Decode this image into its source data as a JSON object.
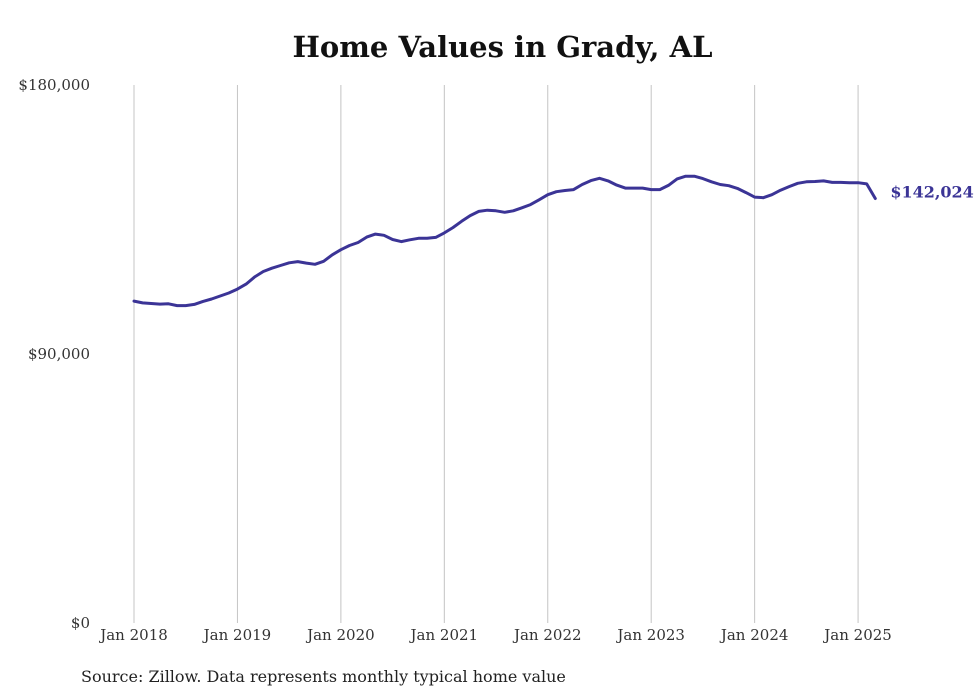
{
  "chart_data": {
    "type": "line",
    "title": "Home Values in Grady, AL",
    "source": "Source: Zillow. Data represents monthly typical home value",
    "xlabel": "",
    "ylabel": "",
    "ylim": [
      0,
      180000
    ],
    "y_ticks": [
      {
        "value": 180000,
        "label": "$180,000"
      },
      {
        "value": 90000,
        "label": "$90,000"
      },
      {
        "value": 0,
        "label": "$0"
      }
    ],
    "x_ticks": [
      {
        "value": "2018-01",
        "label": "Jan 2018"
      },
      {
        "value": "2019-01",
        "label": "Jan 2019"
      },
      {
        "value": "2020-01",
        "label": "Jan 2020"
      },
      {
        "value": "2021-01",
        "label": "Jan 2021"
      },
      {
        "value": "2022-01",
        "label": "Jan 2022"
      },
      {
        "value": "2023-01",
        "label": "Jan 2023"
      },
      {
        "value": "2024-01",
        "label": "Jan 2024"
      },
      {
        "value": "2025-01",
        "label": "Jan 2025"
      }
    ],
    "grid": {
      "vertical": true,
      "horizontal": false
    },
    "line_color": "#3b3496",
    "end_label": "$142,024",
    "series": [
      {
        "x": [
          "2018-01",
          "2018-02",
          "2018-03",
          "2018-04",
          "2018-05",
          "2018-06",
          "2018-07",
          "2018-08",
          "2018-09",
          "2018-10",
          "2018-11",
          "2018-12",
          "2019-01",
          "2019-02",
          "2019-03",
          "2019-04",
          "2019-05",
          "2019-06",
          "2019-07",
          "2019-08",
          "2019-09",
          "2019-10",
          "2019-11",
          "2019-12",
          "2020-01",
          "2020-02",
          "2020-03",
          "2020-04",
          "2020-05",
          "2020-06",
          "2020-07",
          "2020-08",
          "2020-09",
          "2020-10",
          "2020-11",
          "2020-12",
          "2021-01",
          "2021-02",
          "2021-03",
          "2021-04",
          "2021-05",
          "2021-06",
          "2021-07",
          "2021-08",
          "2021-09",
          "2021-10",
          "2021-11",
          "2021-12",
          "2022-01",
          "2022-02",
          "2022-03",
          "2022-04",
          "2022-05",
          "2022-06",
          "2022-07",
          "2022-08",
          "2022-09",
          "2022-10",
          "2022-11",
          "2022-12",
          "2023-01",
          "2023-02",
          "2023-03",
          "2023-04",
          "2023-05",
          "2023-06",
          "2023-07",
          "2023-08",
          "2023-09",
          "2023-10",
          "2023-11",
          "2023-12",
          "2024-01",
          "2024-02",
          "2024-03",
          "2024-04",
          "2024-05",
          "2024-06",
          "2024-07",
          "2024-08",
          "2024-09",
          "2024-10",
          "2024-11",
          "2024-12",
          "2025-01",
          "2025-02",
          "2025-03"
        ],
        "values": [
          107700,
          107100,
          106900,
          106700,
          106800,
          106200,
          106200,
          106600,
          107600,
          108400,
          109400,
          110400,
          111700,
          113400,
          115800,
          117600,
          118700,
          119600,
          120500,
          120900,
          120400,
          120000,
          121000,
          123200,
          124900,
          126300,
          127300,
          129100,
          130100,
          129700,
          128300,
          127600,
          128200,
          128700,
          128700,
          129000,
          130500,
          132300,
          134400,
          136300,
          137700,
          138100,
          137900,
          137400,
          137900,
          138900,
          140000,
          141600,
          143300,
          144300,
          144700,
          145000,
          146700,
          148000,
          148800,
          147900,
          146500,
          145500,
          145500,
          145500,
          145000,
          145000,
          146400,
          148600,
          149500,
          149500,
          148700,
          147600,
          146700,
          146300,
          145400,
          144000,
          142500,
          142300,
          143300,
          144800,
          146000,
          147100,
          147600,
          147700,
          147900,
          147400,
          147400,
          147300,
          147300,
          146900,
          142024
        ]
      }
    ]
  }
}
